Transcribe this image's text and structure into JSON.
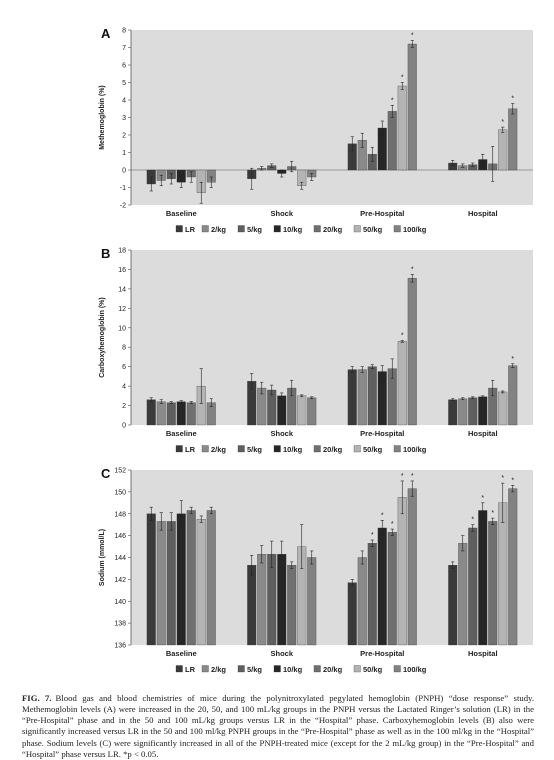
{
  "colors": {
    "panel_bg": "#dcdcdc",
    "series": [
      "#3a3a3a",
      "#8a8a8a",
      "#5f5f5f",
      "#262626",
      "#707070",
      "#b4b4b4",
      "#828282"
    ]
  },
  "legend": [
    "LR",
    "2/kg",
    "5/kg",
    "10/kg",
    "20/kg",
    "50/kg",
    "100/kg"
  ],
  "chart_data": [
    {
      "type": "bar",
      "panel": "A",
      "ylabel": "Methemoglobin (%)",
      "ylim": [
        -2,
        8
      ],
      "yticks": [
        -2,
        -1,
        0,
        1,
        2,
        3,
        4,
        5,
        6,
        7,
        8
      ],
      "categories": [
        "Baseline",
        "Shock",
        "Pre-Hospital",
        "Hospital"
      ],
      "grid": false,
      "legend_position": "bottom",
      "series": [
        {
          "name": "LR",
          "values": [
            -0.8,
            -0.5,
            1.5,
            0.4
          ],
          "errors": [
            0.4,
            0.6,
            0.4,
            0.15
          ]
        },
        {
          "name": "2/kg",
          "values": [
            -0.6,
            0.1,
            1.7,
            0.25
          ],
          "errors": [
            0.3,
            0.1,
            0.4,
            0.1
          ]
        },
        {
          "name": "5/kg",
          "values": [
            -0.5,
            0.25,
            0.9,
            0.3
          ],
          "errors": [
            0.3,
            0.1,
            0.4,
            0.1
          ]
        },
        {
          "name": "10/kg",
          "values": [
            -0.7,
            -0.2,
            2.4,
            0.6
          ],
          "errors": [
            0.3,
            0.2,
            0.4,
            0.3
          ]
        },
        {
          "name": "20/kg",
          "values": [
            -0.4,
            0.2,
            3.35,
            0.35
          ],
          "errors": [
            0.3,
            0.3,
            0.35,
            1.0
          ]
        },
        {
          "name": "50/kg",
          "values": [
            -1.3,
            -0.9,
            4.8,
            2.3
          ],
          "errors": [
            0.6,
            0.2,
            0.2,
            0.15
          ]
        },
        {
          "name": "100/kg",
          "values": [
            -0.7,
            -0.4,
            7.2,
            3.5
          ],
          "errors": [
            0.3,
            0.2,
            0.2,
            0.3
          ]
        }
      ],
      "significance": [
        [
          2,
          4
        ],
        [
          2,
          5
        ],
        [
          2,
          6
        ],
        [
          3,
          5
        ],
        [
          3,
          6
        ]
      ]
    },
    {
      "type": "bar",
      "panel": "B",
      "ylabel": "Carboxyhemoglobin (%)",
      "ylim": [
        0,
        18
      ],
      "yticks": [
        0,
        2,
        4,
        6,
        8,
        10,
        12,
        14,
        16,
        18
      ],
      "categories": [
        "Baseline",
        "Shock",
        "Pre-Hospital",
        "Hospital"
      ],
      "grid": false,
      "legend_position": "bottom",
      "series": [
        {
          "name": "LR",
          "values": [
            2.6,
            4.5,
            5.7,
            2.6
          ],
          "errors": [
            0.2,
            0.8,
            0.3,
            0.1
          ]
        },
        {
          "name": "2/kg",
          "values": [
            2.4,
            3.8,
            5.7,
            2.7
          ],
          "errors": [
            0.2,
            0.6,
            0.3,
            0.1
          ]
        },
        {
          "name": "5/kg",
          "values": [
            2.3,
            3.6,
            6.0,
            2.8
          ],
          "errors": [
            0.1,
            0.5,
            0.2,
            0.1
          ]
        },
        {
          "name": "10/kg",
          "values": [
            2.4,
            3.0,
            5.5,
            2.9
          ],
          "errors": [
            0.1,
            0.3,
            0.6,
            0.1
          ]
        },
        {
          "name": "20/kg",
          "values": [
            2.3,
            3.8,
            5.8,
            3.8
          ],
          "errors": [
            0.1,
            0.8,
            1.0,
            0.8
          ]
        },
        {
          "name": "50/kg",
          "values": [
            4.0,
            3.0,
            8.6,
            3.4
          ],
          "errors": [
            1.8,
            0.1,
            0.1,
            0.1
          ]
        },
        {
          "name": "100/kg",
          "values": [
            2.3,
            2.8,
            15.1,
            6.1
          ],
          "errors": [
            0.4,
            0.1,
            0.4,
            0.2
          ]
        }
      ],
      "significance": [
        [
          2,
          5
        ],
        [
          2,
          6
        ],
        [
          3,
          6
        ]
      ]
    },
    {
      "type": "bar",
      "panel": "C",
      "ylabel": "Sodium (mmol/L)",
      "ylim": [
        136,
        152
      ],
      "yticks": [
        136,
        138,
        140,
        142,
        144,
        146,
        148,
        150,
        152
      ],
      "categories": [
        "Baseline",
        "Shock",
        "Pre-Hospital",
        "Hospital"
      ],
      "grid": false,
      "legend_position": "bottom",
      "series": [
        {
          "name": "LR",
          "values": [
            148.0,
            143.3,
            141.7,
            143.3
          ],
          "errors": [
            0.6,
            0.9,
            0.3,
            0.3
          ]
        },
        {
          "name": "2/kg",
          "values": [
            147.3,
            144.3,
            144.0,
            145.3
          ],
          "errors": [
            0.8,
            0.8,
            0.6,
            0.7
          ]
        },
        {
          "name": "5/kg",
          "values": [
            147.3,
            144.3,
            145.3,
            146.7
          ],
          "errors": [
            0.8,
            1.2,
            0.3,
            0.3
          ]
        },
        {
          "name": "10/kg",
          "values": [
            148.0,
            144.3,
            146.7,
            148.3
          ],
          "errors": [
            1.2,
            1.2,
            0.7,
            0.7
          ]
        },
        {
          "name": "20/kg",
          "values": [
            148.3,
            143.3,
            146.3,
            147.3
          ],
          "errors": [
            0.3,
            0.3,
            0.3,
            0.3
          ]
        },
        {
          "name": "50/kg",
          "values": [
            147.5,
            145.0,
            149.5,
            149.0
          ],
          "errors": [
            0.3,
            2.0,
            1.5,
            1.8
          ]
        },
        {
          "name": "100/kg",
          "values": [
            148.3,
            144.0,
            150.3,
            150.3
          ],
          "errors": [
            0.3,
            0.6,
            0.7,
            0.3
          ]
        }
      ],
      "significance": [
        [
          2,
          2
        ],
        [
          2,
          3
        ],
        [
          2,
          4
        ],
        [
          2,
          5
        ],
        [
          2,
          6
        ],
        [
          3,
          2
        ],
        [
          3,
          3
        ],
        [
          3,
          4
        ],
        [
          3,
          5
        ],
        [
          3,
          6
        ]
      ]
    }
  ],
  "caption": {
    "label": "FIG. 7.",
    "text": "Blood gas and blood chemistries of mice during the polynitroxylated pegylated hemoglobin (PNPH) “dose response” study. Methemoglobin levels (A) were increased in the 20, 50, and 100 mL/kg groups in the PNPH versus the Lactated Ringer’s solution (LR) in the “Pre-Hospital” phase and in the 50 and 100 mL/kg groups versus LR in the “Hospital” phase. Carboxyhemoglobin levels (B) also were significantly increased versus LR in the 50 and 100 ml/kg PNPH groups in the “Pre-Hospital” phase as well as in the 100 ml/kg in the “Hospital” phase. Sodium levels (C) were significantly increased in all of the PNPH-treated mice (except for the 2 mL/kg group) in the “Pre-Hospital” and “Hospital” phase versus LR. *p < 0.05."
  }
}
